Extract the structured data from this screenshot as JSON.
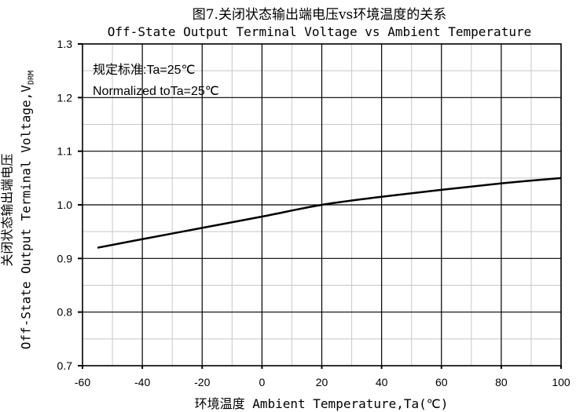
{
  "chart_data": {
    "type": "line",
    "title": "图7.关闭状态输出端电压vs环境温度的关系",
    "subtitle": "Off-State Output Terminal Voltage vs Ambient Temperature",
    "xlabel": "环境温度 Ambient Temperature,Ta(℃)",
    "ylabel_cn": "关闭状态输出端电压",
    "ylabel_en": "Off-State Output Terminal Voltage,V",
    "ylabel_sub": "DRM",
    "annotations": [
      "规定标准:Ta=25℃",
      "Normalized toTa=25℃"
    ],
    "xlim": [
      -60,
      100
    ],
    "ylim": [
      0.7,
      1.3
    ],
    "xticks": [
      "-60",
      "-40",
      "-20",
      "0",
      "20",
      "40",
      "60",
      "80",
      "100"
    ],
    "yticks": [
      "0.7",
      "0.8",
      "0.9",
      "1.0",
      "1.1",
      "1.2",
      "1.3"
    ],
    "grid": true,
    "series": [
      {
        "color": "#000000",
        "x": [
          -55,
          -40,
          -20,
          0,
          20,
          40,
          60,
          80,
          100
        ],
        "y": [
          0.92,
          0.936,
          0.957,
          0.978,
          1.0,
          1.015,
          1.028,
          1.04,
          1.05
        ]
      }
    ]
  }
}
